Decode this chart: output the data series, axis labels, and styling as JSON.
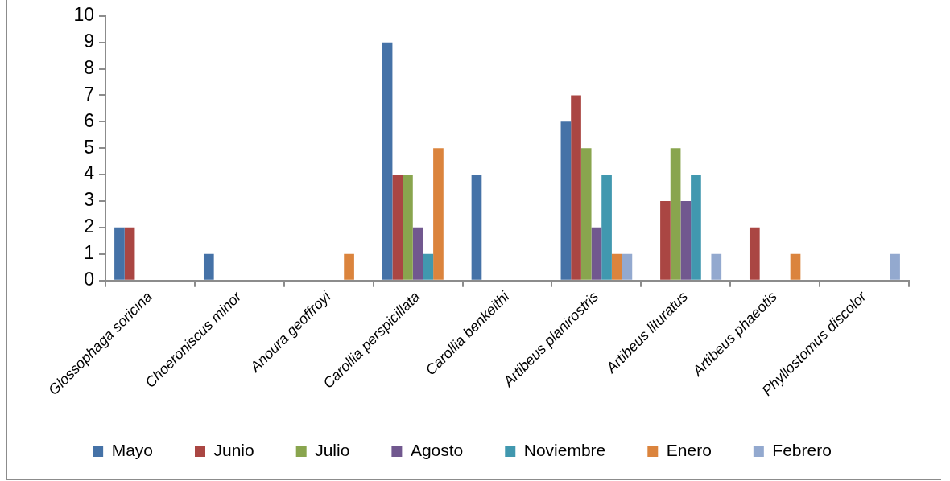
{
  "chart_data": {
    "type": "bar",
    "categories": [
      "Glossophaga soricina",
      "Choeroniscus minor",
      "Anoura geoffroyi",
      "Carollia perspicillata",
      "Carollia benkeithi",
      "Artibeus planirostris",
      "Artibeus lituratus",
      "Artibeus phaeotis",
      "Phyllostomus discolor"
    ],
    "series": [
      {
        "name": "Mayo",
        "color": "#4572a7",
        "values": [
          2,
          1,
          0,
          9,
          4,
          6,
          0,
          0,
          0
        ]
      },
      {
        "name": "Junio",
        "color": "#aa4643",
        "values": [
          2,
          0,
          0,
          4,
          0,
          7,
          3,
          2,
          0
        ]
      },
      {
        "name": "Julio",
        "color": "#89a54e",
        "values": [
          0,
          0,
          0,
          4,
          0,
          5,
          5,
          0,
          0
        ]
      },
      {
        "name": "Agosto",
        "color": "#71588f",
        "values": [
          0,
          0,
          0,
          2,
          0,
          2,
          3,
          0,
          0
        ]
      },
      {
        "name": "Noviembre",
        "color": "#4198af",
        "values": [
          0,
          0,
          0,
          1,
          0,
          4,
          4,
          0,
          0
        ]
      },
      {
        "name": "Enero",
        "color": "#db843d",
        "values": [
          0,
          0,
          1,
          5,
          0,
          1,
          0,
          1,
          0
        ]
      },
      {
        "name": "Febrero",
        "color": "#93a9cf",
        "values": [
          0,
          0,
          0,
          0,
          0,
          1,
          1,
          0,
          1
        ]
      }
    ],
    "ylim": [
      0,
      10
    ],
    "yticks": [
      0,
      1,
      2,
      3,
      4,
      5,
      6,
      7,
      8,
      9,
      10
    ],
    "legend": "bottom"
  }
}
